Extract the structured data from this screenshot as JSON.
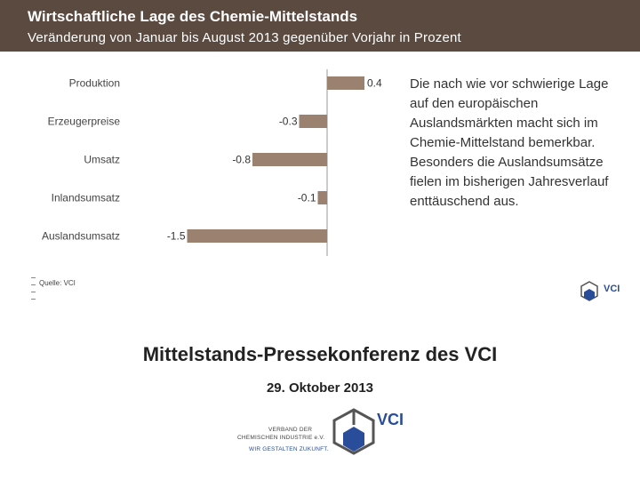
{
  "header": {
    "title": "Wirtschaftliche Lage des Chemie-Mittelstands",
    "subtitle": "Veränderung von Januar bis August 2013 gegenüber Vorjahr in Prozent"
  },
  "chart_data": {
    "type": "bar",
    "orientation": "horizontal",
    "categories": [
      "Produktion",
      "Erzeugerpreise",
      "Umsatz",
      "Inlandsumsatz",
      "Auslandsumsatz"
    ],
    "values": [
      0.4,
      -0.3,
      -0.8,
      -0.1,
      -1.5
    ],
    "value_labels": [
      "0.4",
      "-0.3",
      "-0.8",
      "-0.1",
      "-1.5"
    ],
    "xlim": [
      -1.6,
      0.6
    ],
    "grid": false,
    "bar_color": "#9b8170"
  },
  "side_text": "Die nach wie vor schwierige Lage auf den europäischen Auslandsmärkten macht sich im Chemie-Mittelstand bemerkbar. Besonders die Auslandsumsätze fielen im bisherigen Jahresverlauf enttäuschend aus.",
  "source": "Quelle: VCI",
  "logo": {
    "brand": "VCI",
    "org_line1": "VERBAND DER",
    "org_line2": "CHEMISCHEN INDUSTRIE e.V.",
    "tagline": "WIR GESTALTEN ZUKUNFT."
  },
  "conference": {
    "title": "Mittelstands-Pressekonferenz des VCI",
    "date": "29. Oktober 2013"
  },
  "colors": {
    "header_bg": "#5a4a40",
    "bar": "#9b8170",
    "logo_blue": "#2a4d9b"
  }
}
